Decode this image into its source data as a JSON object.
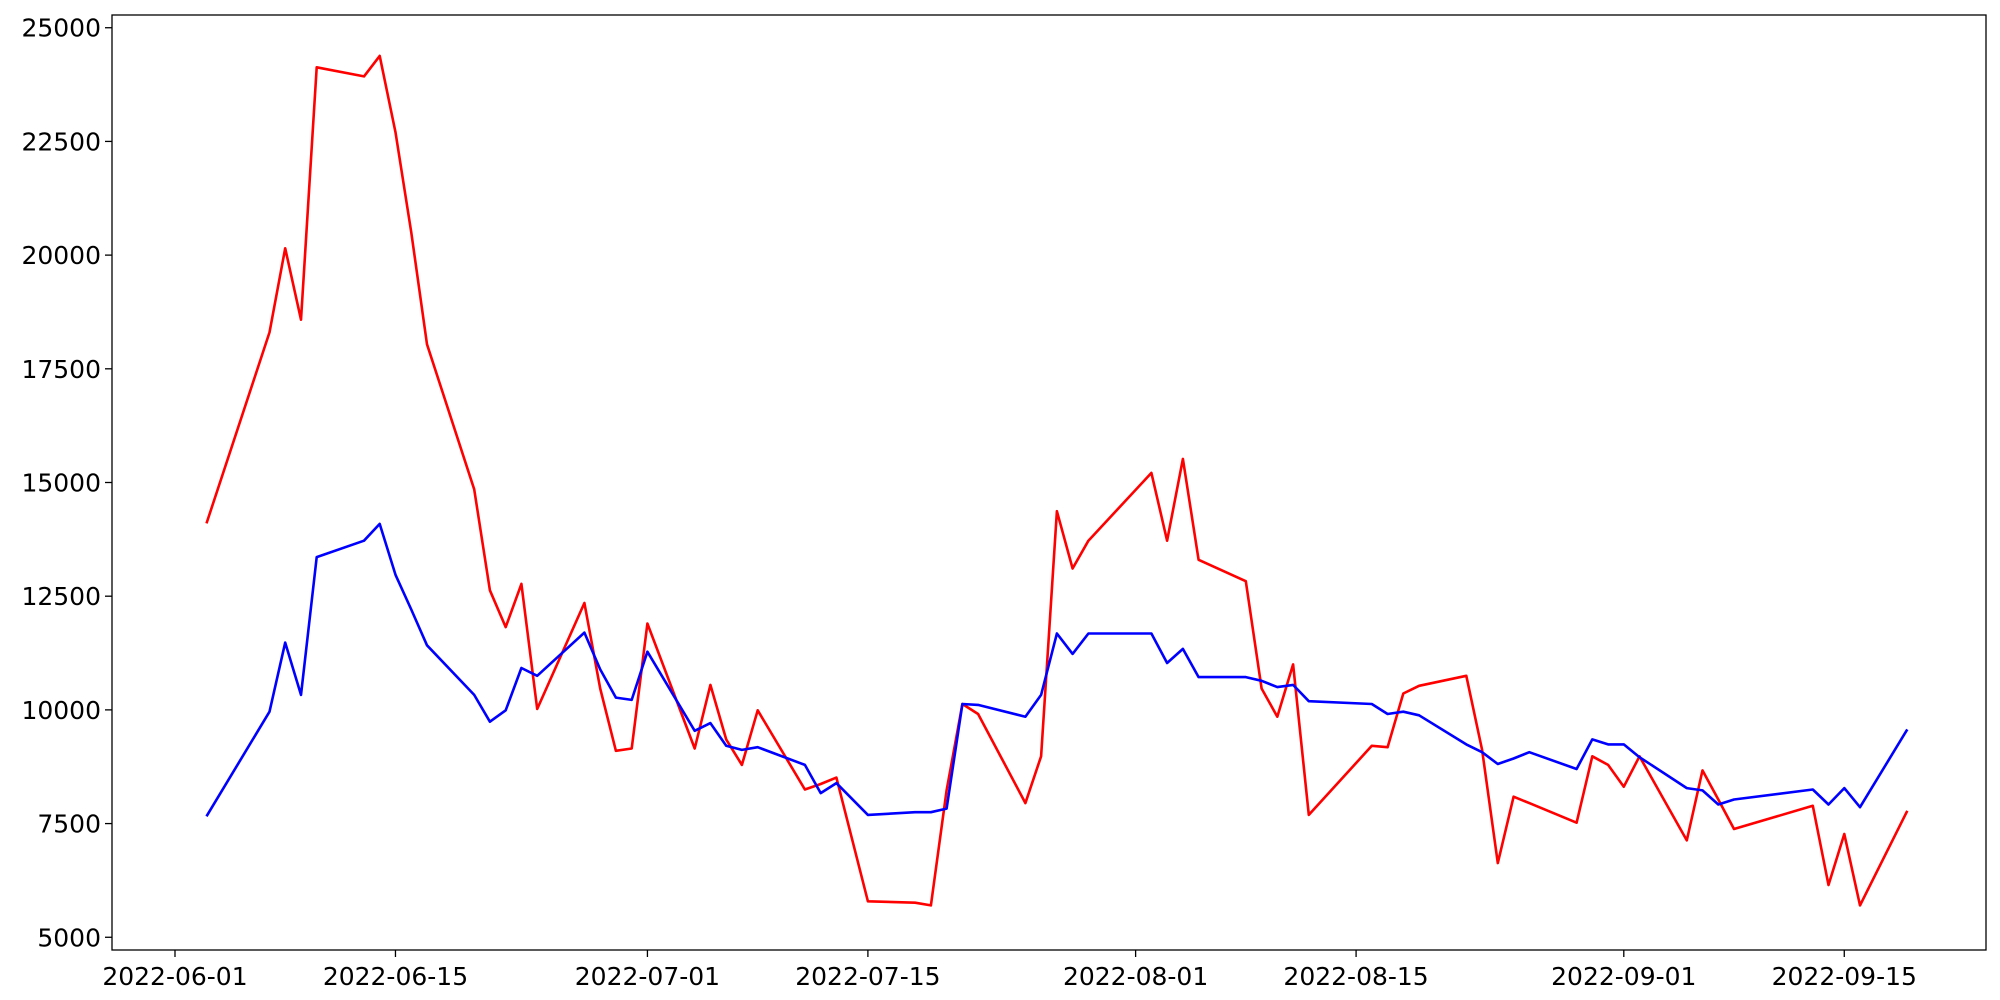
{
  "chart_data": {
    "type": "line",
    "x": [
      "2022-06-03",
      "2022-06-07",
      "2022-06-08",
      "2022-06-09",
      "2022-06-10",
      "2022-06-13",
      "2022-06-14",
      "2022-06-15",
      "2022-06-16",
      "2022-06-17",
      "2022-06-20",
      "2022-06-21",
      "2022-06-22",
      "2022-06-23",
      "2022-06-24",
      "2022-06-27",
      "2022-06-28",
      "2022-06-29",
      "2022-06-30",
      "2022-07-01",
      "2022-07-04",
      "2022-07-05",
      "2022-07-06",
      "2022-07-07",
      "2022-07-08",
      "2022-07-11",
      "2022-07-12",
      "2022-07-13",
      "2022-07-15",
      "2022-07-18",
      "2022-07-19",
      "2022-07-20",
      "2022-07-21",
      "2022-07-22",
      "2022-07-25",
      "2022-07-26",
      "2022-07-27",
      "2022-07-28",
      "2022-07-29",
      "2022-08-02",
      "2022-08-03",
      "2022-08-04",
      "2022-08-05",
      "2022-08-08",
      "2022-08-09",
      "2022-08-10",
      "2022-08-11",
      "2022-08-12",
      "2022-08-16",
      "2022-08-17",
      "2022-08-18",
      "2022-08-19",
      "2022-08-22",
      "2022-08-23",
      "2022-08-24",
      "2022-08-25",
      "2022-08-26",
      "2022-08-29",
      "2022-08-30",
      "2022-08-31",
      "2022-09-01",
      "2022-09-02",
      "2022-09-05",
      "2022-09-06",
      "2022-09-07",
      "2022-09-08",
      "2022-09-13",
      "2022-09-14",
      "2022-09-15",
      "2022-09-16",
      "2022-09-19"
    ],
    "series": [
      {
        "color": "#ff0000",
        "values": [
          14100,
          18300,
          20150,
          18580,
          24130,
          23930,
          24380,
          22700,
          20510,
          18040,
          14850,
          12630,
          11820,
          12770,
          10020,
          12350,
          10470,
          9100,
          9150,
          11900,
          9150,
          10550,
          9350,
          8790,
          9990,
          8250,
          8370,
          8510,
          5790,
          5760,
          5700,
          8230,
          10130,
          9910,
          7950,
          8980,
          14370,
          13110,
          13720,
          15210,
          13720,
          15520,
          13300,
          12830,
          10470,
          9850,
          11000,
          7690,
          9210,
          9180,
          10360,
          10530,
          10750,
          9120,
          6630,
          8090,
          7950,
          7520,
          8980,
          8790,
          8310,
          8980,
          7130,
          8670,
          8030,
          7380,
          7890,
          6150,
          7270,
          5700,
          7780
        ]
      },
      {
        "color": "#0000ff",
        "values": [
          7660,
          9960,
          11480,
          10330,
          13360,
          13720,
          14090,
          12970,
          12210,
          11420,
          10330,
          9740,
          9990,
          10920,
          10750,
          11700,
          10890,
          10270,
          10220,
          11280,
          9540,
          9710,
          9210,
          9120,
          9180,
          8790,
          8170,
          8390,
          7690,
          7750,
          7750,
          7830,
          10130,
          10110,
          9850,
          10330,
          11680,
          11230,
          11680,
          11680,
          11030,
          11340,
          10720,
          10720,
          10640,
          10500,
          10550,
          10190,
          10130,
          9910,
          9960,
          9880,
          9240,
          9070,
          8810,
          8930,
          9070,
          8700,
          9350,
          9240,
          9240,
          8960,
          8280,
          8230,
          7920,
          8030,
          8250,
          7920,
          8280,
          7860,
          9570
        ]
      }
    ],
    "xlim": [
      "2022-05-28",
      "2022-09-24"
    ],
    "xticks": [
      "2022-06-01",
      "2022-06-15",
      "2022-07-01",
      "2022-07-15",
      "2022-08-01",
      "2022-08-15",
      "2022-09-01",
      "2022-09-15"
    ],
    "ylim": [
      4720,
      25280
    ],
    "yticks": [
      5000,
      7500,
      10000,
      12500,
      15000,
      17500,
      20000,
      22500,
      25000
    ],
    "grid": false
  }
}
